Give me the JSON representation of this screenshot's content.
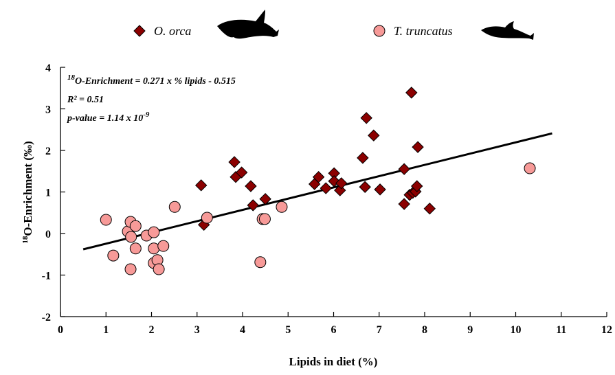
{
  "chart_data": {
    "type": "scatter",
    "x_label": "Lipids in diet (%)",
    "y_label_parts": [
      {
        "sup": "18"
      },
      {
        "text": "O-Enrichment (‰)"
      }
    ],
    "annotations": [
      [
        {
          "sup": "18"
        },
        {
          "text": "O-Enrichment = 0.271 x % lipids - 0.515"
        }
      ],
      [
        {
          "text": "R² = 0.51"
        }
      ],
      [
        {
          "text": "p-value = 1.14 x 10"
        },
        {
          "sup": "-9"
        }
      ]
    ],
    "xlim": [
      0,
      12
    ],
    "xticks": [
      0,
      1,
      2,
      3,
      4,
      5,
      6,
      7,
      8,
      9,
      10,
      11,
      12
    ],
    "ylim": [
      -2,
      4
    ],
    "yticks": [
      -2,
      -1,
      0,
      1,
      2,
      3,
      4
    ],
    "series": [
      {
        "name": "O. orca",
        "marker": "diamond",
        "color": "#8b0000",
        "x": [
          3.09,
          3.15,
          3.82,
          3.85,
          3.98,
          4.18,
          4.23,
          4.5,
          5.58,
          5.67,
          5.83,
          6.01,
          6.01,
          6.14,
          6.17,
          6.64,
          6.72,
          6.69,
          6.88,
          7.02,
          7.55,
          7.55,
          7.71,
          7.67,
          7.74,
          7.8,
          7.85,
          7.83,
          8.11
        ],
        "y": [
          1.16,
          0.21,
          1.72,
          1.36,
          1.47,
          1.14,
          0.68,
          0.83,
          1.19,
          1.36,
          1.09,
          1.45,
          1.26,
          1.04,
          1.21,
          1.82,
          2.78,
          1.12,
          2.36,
          1.06,
          1.55,
          0.71,
          3.39,
          0.93,
          0.98,
          1.01,
          2.08,
          1.14,
          0.6
        ]
      },
      {
        "name": "T. truncatus",
        "marker": "circle",
        "color": "#f79a98",
        "x": [
          1.0,
          1.16,
          1.48,
          1.54,
          1.55,
          1.65,
          1.65,
          1.54,
          1.89,
          2.05,
          2.05,
          2.05,
          2.13,
          2.16,
          2.26,
          2.51,
          3.22,
          4.44,
          4.49,
          4.39,
          4.86,
          10.31
        ],
        "y": [
          0.33,
          -0.53,
          0.05,
          0.28,
          -0.08,
          0.18,
          -0.36,
          -0.86,
          -0.05,
          0.03,
          -0.36,
          -0.71,
          -0.64,
          -0.86,
          -0.3,
          0.64,
          0.38,
          0.35,
          0.35,
          -0.69,
          0.64,
          1.57
        ]
      }
    ],
    "trendline": {
      "x": [
        0.5,
        10.8
      ],
      "y": [
        -0.38,
        2.41
      ],
      "color": "#000000"
    }
  }
}
